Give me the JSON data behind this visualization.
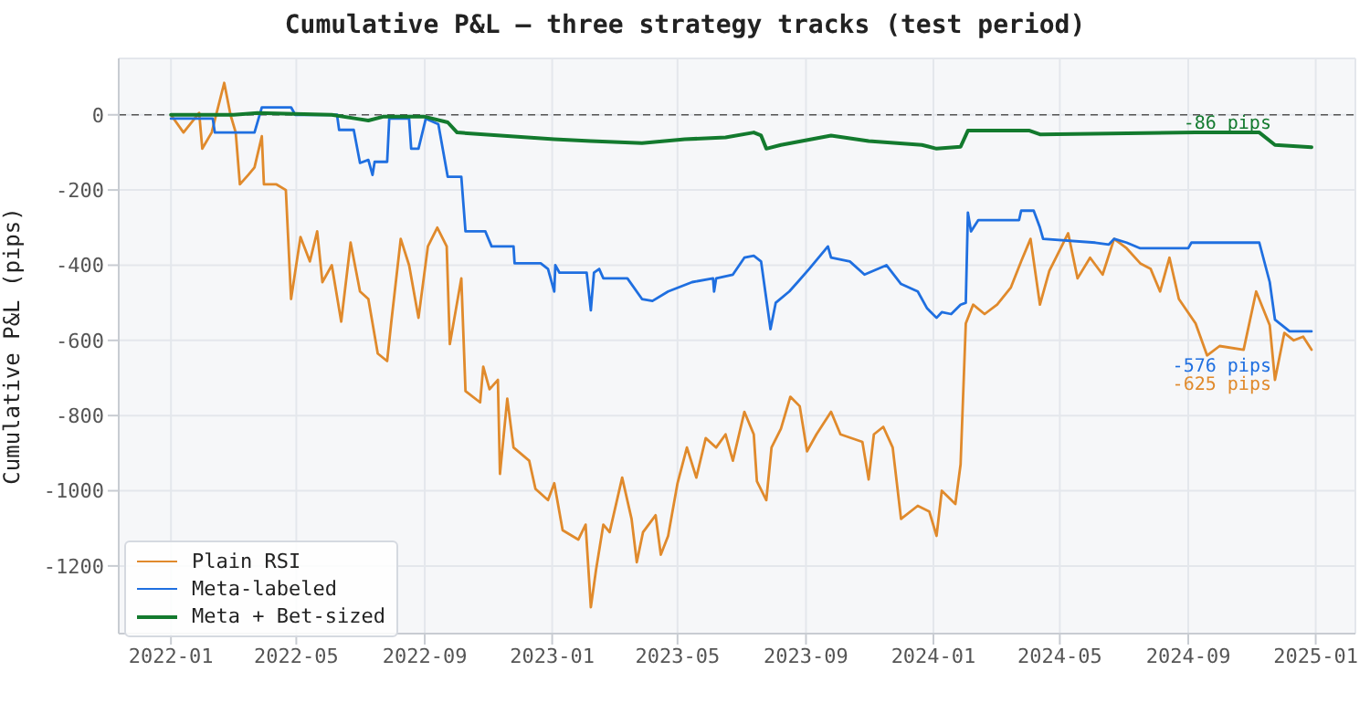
{
  "chart_data": {
    "type": "line",
    "title": "Cumulative P&L — three strategy tracks (test period)",
    "ylabel": "Cumulative P&L (pips)",
    "xlim": [
      "2021-11-12",
      "2025-02-08"
    ],
    "xticks": [
      "2022-01",
      "2022-05",
      "2022-09",
      "2023-01",
      "2023-05",
      "2023-09",
      "2024-01",
      "2024-05",
      "2024-09",
      "2025-01"
    ],
    "ylim": [
      -1380,
      150
    ],
    "yticks": [
      -1200,
      -1000,
      -800,
      -600,
      -400,
      -200,
      0
    ],
    "grid": true,
    "legend": "bottom left",
    "line_style": "solid",
    "marker": "none",
    "ref_lines": [
      {
        "axis": "y",
        "value": 0,
        "label": null,
        "color": "#555555",
        "line_style": "dashed"
      }
    ],
    "annotations": [
      {
        "text": "-625 pips",
        "x": "2024-12-28",
        "y": -625
      },
      {
        "text": "-576 pips",
        "x": "2024-12-28",
        "y": -576
      },
      {
        "text": "-86 pips",
        "x": "2024-12-28",
        "y": -86
      }
    ],
    "series": [
      {
        "name": "Plain RSI",
        "color": "#e08a2c",
        "x": [
          "2022-01-01",
          "2022-01-13",
          "2022-01-28",
          "2022-01-31",
          "2022-02-09",
          "2022-02-21",
          "2022-02-27",
          "2022-03-04",
          "2022-03-08",
          "2022-03-16",
          "2022-03-22",
          "2022-03-29",
          "2022-03-31",
          "2022-04-12",
          "2022-04-21",
          "2022-04-26",
          "2022-05-05",
          "2022-05-14",
          "2022-05-21",
          "2022-05-26",
          "2022-06-04",
          "2022-06-13",
          "2022-06-22",
          "2022-07-01",
          "2022-07-09",
          "2022-07-18",
          "2022-07-27",
          "2022-07-31",
          "2022-08-09",
          "2022-08-17",
          "2022-08-26",
          "2022-09-04",
          "2022-09-13",
          "2022-09-22",
          "2022-09-25",
          "2022-10-06",
          "2022-10-10",
          "2022-10-24",
          "2022-10-27",
          "2022-11-02",
          "2022-11-10",
          "2022-11-12",
          "2022-11-19",
          "2022-11-25",
          "2022-12-10",
          "2022-12-16",
          "2022-12-28",
          "2023-01-03",
          "2023-01-11",
          "2023-01-26",
          "2023-02-02",
          "2023-02-07",
          "2023-02-12",
          "2023-02-19",
          "2023-02-25",
          "2023-03-09",
          "2023-03-18",
          "2023-03-23",
          "2023-03-29",
          "2023-04-10",
          "2023-04-15",
          "2023-04-22",
          "2023-05-01",
          "2023-05-10",
          "2023-05-19",
          "2023-05-28",
          "2023-06-07",
          "2023-06-16",
          "2023-06-23",
          "2023-07-04",
          "2023-07-13",
          "2023-07-16",
          "2023-07-25",
          "2023-07-30",
          "2023-08-08",
          "2023-08-17",
          "2023-08-26",
          "2023-09-02",
          "2023-09-11",
          "2023-09-25",
          "2023-10-04",
          "2023-10-25",
          "2023-10-31",
          "2023-11-05",
          "2023-11-14",
          "2023-11-23",
          "2023-12-01",
          "2023-12-17",
          "2023-12-28",
          "2024-01-04",
          "2024-01-09",
          "2024-01-22",
          "2024-01-27",
          "2024-02-01",
          "2024-02-08",
          "2024-02-19",
          "2024-03-02",
          "2024-03-15",
          "2024-03-25",
          "2024-04-03",
          "2024-04-12",
          "2024-04-21",
          "2024-04-30",
          "2024-05-09",
          "2024-05-18",
          "2024-05-30",
          "2024-06-11",
          "2024-06-22",
          "2024-07-04",
          "2024-07-17",
          "2024-07-27",
          "2024-08-05",
          "2024-08-14",
          "2024-08-23",
          "2024-09-08",
          "2024-09-19",
          "2024-10-01",
          "2024-10-24",
          "2024-11-05",
          "2024-11-18",
          "2024-11-23",
          "2024-12-02",
          "2024-12-11",
          "2024-12-20",
          "2024-12-28"
        ],
        "values": [
          0,
          -47,
          5,
          -90,
          -47,
          85,
          0,
          -47,
          -185,
          -160,
          -140,
          -57,
          -185,
          -185,
          -200,
          -490,
          -325,
          -390,
          -310,
          -445,
          -400,
          -550,
          -340,
          -470,
          -490,
          -635,
          -655,
          -550,
          -330,
          -400,
          -540,
          -350,
          -300,
          -350,
          -610,
          -435,
          -735,
          -765,
          -670,
          -730,
          -705,
          -955,
          -755,
          -885,
          -920,
          -995,
          -1025,
          -980,
          -1105,
          -1130,
          -1090,
          -1310,
          -1210,
          -1090,
          -1110,
          -965,
          -1075,
          -1190,
          -1110,
          -1065,
          -1170,
          -1120,
          -980,
          -885,
          -965,
          -860,
          -885,
          -850,
          -920,
          -790,
          -850,
          -975,
          -1025,
          -885,
          -835,
          -750,
          -775,
          -895,
          -850,
          -790,
          -850,
          -870,
          -970,
          -850,
          -830,
          -885,
          -1075,
          -1040,
          -1055,
          -1120,
          -1000,
          -1035,
          -930,
          -555,
          -505,
          -530,
          -505,
          -460,
          -390,
          -330,
          -505,
          -415,
          -365,
          -315,
          -435,
          -380,
          -425,
          -330,
          -355,
          -395,
          -410,
          -470,
          -380,
          -490,
          -555,
          -640,
          -615,
          -625,
          -470,
          -560,
          -705,
          -580,
          -600,
          -590,
          -625
        ]
      },
      {
        "name": "Meta-labeled",
        "color": "#1f6fe0",
        "x": [
          "2022-01-01",
          "2022-01-31",
          "2022-02-10",
          "2022-02-12",
          "2022-03-22",
          "2022-03-29",
          "2022-04-26",
          "2022-04-30",
          "2022-06-09",
          "2022-06-11",
          "2022-06-25",
          "2022-07-01",
          "2022-07-09",
          "2022-07-13",
          "2022-07-15",
          "2022-07-27",
          "2022-07-29",
          "2022-08-17",
          "2022-08-19",
          "2022-08-26",
          "2022-09-02",
          "2022-09-14",
          "2022-09-23",
          "2022-10-06",
          "2022-10-10",
          "2022-10-29",
          "2022-11-04",
          "2022-11-25",
          "2022-11-26",
          "2022-12-21",
          "2022-12-28",
          "2023-01-03",
          "2023-01-04",
          "2023-01-08",
          "2023-02-03",
          "2023-02-07",
          "2023-02-10",
          "2023-02-15",
          "2023-02-19",
          "2023-03-14",
          "2023-03-28",
          "2023-04-07",
          "2023-04-22",
          "2023-05-15",
          "2023-06-04",
          "2023-06-05",
          "2023-06-07",
          "2023-06-23",
          "2023-07-04",
          "2023-07-13",
          "2023-07-20",
          "2023-07-25",
          "2023-07-29",
          "2023-08-03",
          "2023-08-16",
          "2023-08-24",
          "2023-09-04",
          "2023-09-22",
          "2023-09-25",
          "2023-10-13",
          "2023-10-27",
          "2023-11-17",
          "2023-12-01",
          "2023-12-17",
          "2023-12-26",
          "2024-01-04",
          "2024-01-09",
          "2024-01-18",
          "2024-01-27",
          "2024-02-01",
          "2024-02-03",
          "2024-02-06",
          "2024-02-13",
          "2024-03-23",
          "2024-03-25",
          "2024-04-06",
          "2024-04-12",
          "2024-04-15",
          "2024-06-04",
          "2024-06-17",
          "2024-06-22",
          "2024-07-04",
          "2024-07-17",
          "2024-09-01",
          "2024-09-04",
          "2024-11-08",
          "2024-11-18",
          "2024-11-23",
          "2024-12-07",
          "2024-12-28"
        ],
        "values": [
          -10,
          -10,
          -10,
          -47,
          -47,
          20,
          20,
          0,
          0,
          -40,
          -40,
          -128,
          -120,
          -160,
          -125,
          -125,
          -10,
          -10,
          -90,
          -90,
          -10,
          -25,
          -165,
          -165,
          -310,
          -310,
          -350,
          -350,
          -395,
          -395,
          -410,
          -470,
          -400,
          -420,
          -420,
          -520,
          -420,
          -410,
          -435,
          -435,
          -490,
          -495,
          -470,
          -445,
          -435,
          -470,
          -435,
          -425,
          -380,
          -375,
          -390,
          -490,
          -570,
          -500,
          -470,
          -445,
          -410,
          -350,
          -380,
          -390,
          -425,
          -400,
          -450,
          -470,
          -515,
          -540,
          -525,
          -530,
          -505,
          -500,
          -260,
          -310,
          -280,
          -280,
          -255,
          -255,
          -300,
          -330,
          -340,
          -345,
          -330,
          -340,
          -355,
          -355,
          -340,
          -340,
          -445,
          -545,
          -576,
          -576
        ]
      },
      {
        "name": "Meta + Bet-sized",
        "color": "#137a2e",
        "x": [
          "2022-01-01",
          "2022-03-02",
          "2022-03-25",
          "2022-06-04",
          "2022-06-27",
          "2022-07-09",
          "2022-07-23",
          "2022-09-01",
          "2022-09-23",
          "2022-10-02",
          "2023-01-03",
          "2023-02-07",
          "2023-03-28",
          "2023-05-08",
          "2023-06-16",
          "2023-07-13",
          "2023-07-20",
          "2023-07-25",
          "2023-08-08",
          "2023-09-25",
          "2023-10-31",
          "2023-12-21",
          "2024-01-04",
          "2024-01-27",
          "2024-02-03",
          "2024-04-02",
          "2024-04-12",
          "2024-09-08",
          "2024-11-08",
          "2024-11-23",
          "2024-12-28"
        ],
        "values": [
          0,
          0,
          5,
          0,
          -10,
          -15,
          -5,
          -5,
          -20,
          -47,
          -65,
          -70,
          -75,
          -65,
          -60,
          -47,
          -55,
          -90,
          -80,
          -55,
          -70,
          -80,
          -90,
          -85,
          -42,
          -42,
          -52,
          -47,
          -47,
          -80,
          -86
        ]
      }
    ]
  }
}
